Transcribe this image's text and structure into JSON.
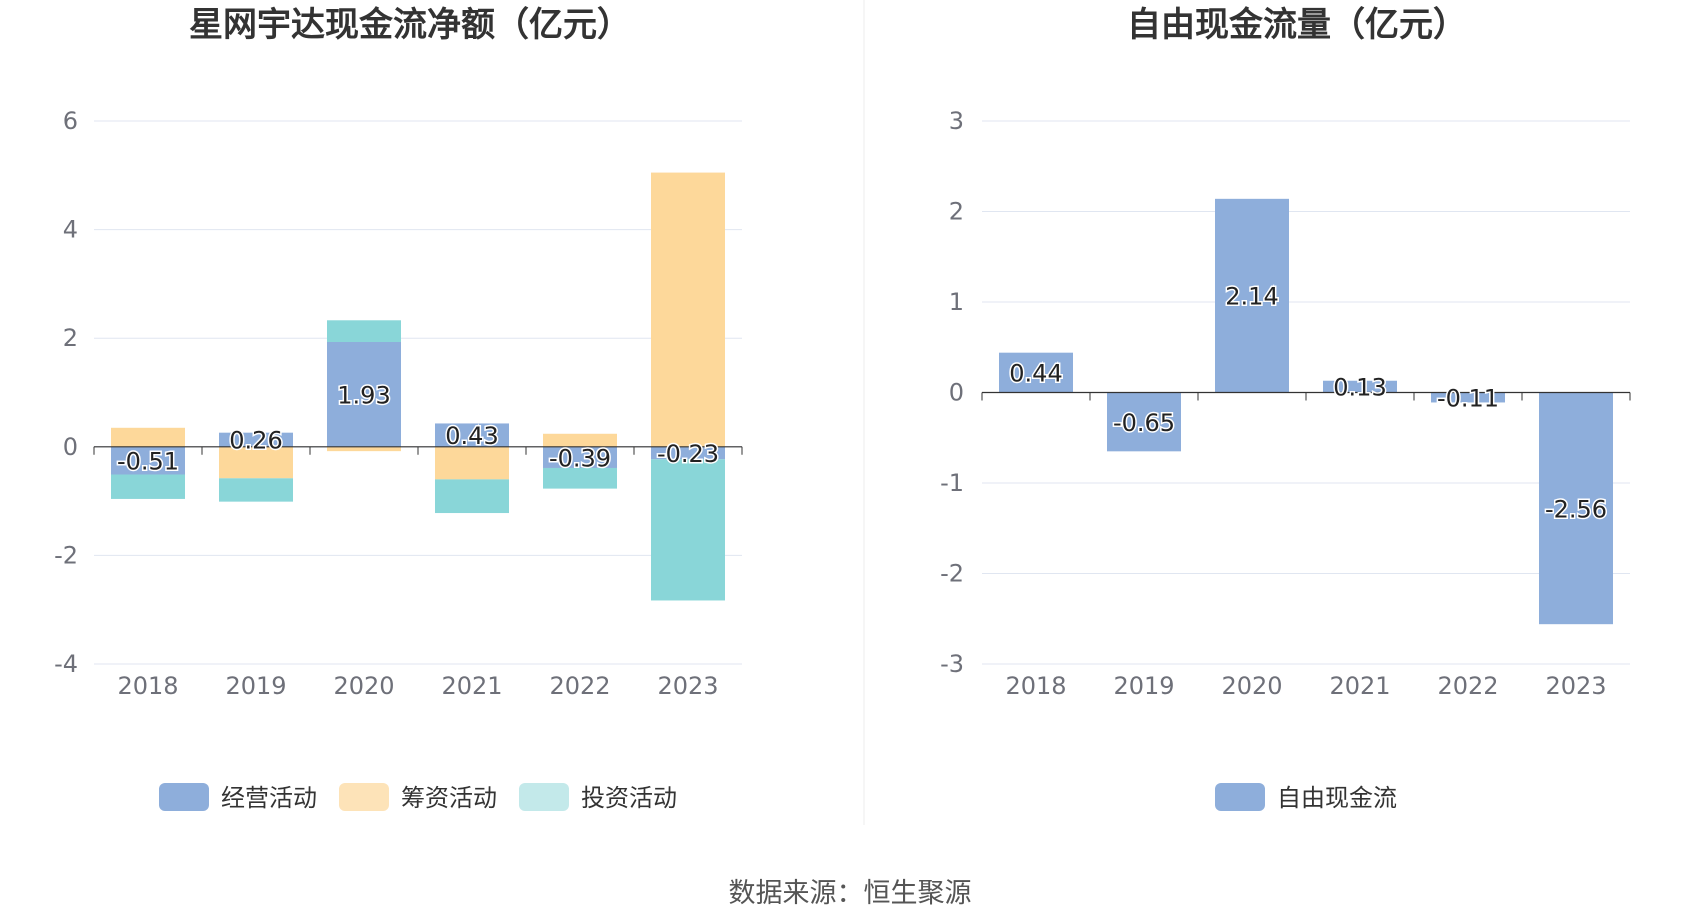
{
  "source_text": "数据来源：恒生聚源",
  "chart_data": [
    {
      "type": "bar",
      "stacked": true,
      "title": "星网宇达现金流净额（亿元）",
      "categories": [
        "2018",
        "2019",
        "2020",
        "2021",
        "2022",
        "2023"
      ],
      "ylim": [
        -4,
        6
      ],
      "yticks": [
        -4,
        -2,
        0,
        2,
        4,
        6
      ],
      "grid": true,
      "legend_position": "bottom",
      "series": [
        {
          "name": "经营活动",
          "color": "#8eaedb",
          "values": [
            -0.51,
            0.26,
            1.93,
            0.43,
            -0.39,
            -0.23
          ],
          "labels": [
            "-0.51",
            "0.26",
            "1.93",
            "0.43",
            "-0.39",
            "-0.23"
          ]
        },
        {
          "name": "筹资活动",
          "color": "#fdd89a",
          "values": [
            0.35,
            -0.58,
            -0.08,
            -0.6,
            0.24,
            5.05
          ]
        },
        {
          "name": "投资活动",
          "color": "#89d6d8",
          "values": [
            -0.45,
            -0.43,
            0.4,
            -0.62,
            -0.38,
            -2.6
          ]
        }
      ],
      "legend_colors": [
        "#8eaedb",
        "#fde3b8",
        "#c3e9ea"
      ]
    },
    {
      "type": "bar",
      "title": "自由现金流量（亿元）",
      "categories": [
        "2018",
        "2019",
        "2020",
        "2021",
        "2022",
        "2023"
      ],
      "ylim": [
        -3,
        3
      ],
      "yticks": [
        -3,
        -2,
        -1,
        0,
        1,
        2,
        3
      ],
      "grid": true,
      "legend_position": "bottom",
      "series": [
        {
          "name": "自由现金流",
          "color": "#8eaedb",
          "values": [
            0.44,
            -0.65,
            2.14,
            0.13,
            -0.11,
            -2.56
          ],
          "labels": [
            "0.44",
            "-0.65",
            "2.14",
            "0.13",
            "-0.11",
            "-2.56"
          ]
        }
      ],
      "legend_colors": [
        "#8eaedb"
      ]
    }
  ]
}
